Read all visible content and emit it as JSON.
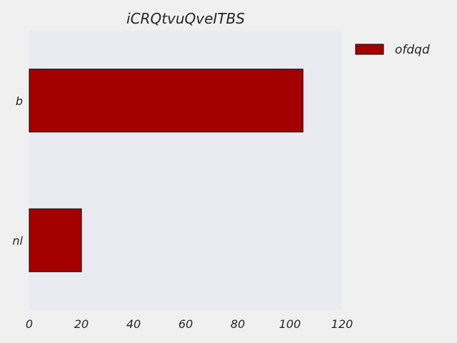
{
  "chart_data": {
    "type": "bar",
    "orientation": "horizontal",
    "title": "iCRQtvuQveITBS",
    "xlabel": "",
    "ylabel": "",
    "categories": [
      "b",
      "nl"
    ],
    "series": [
      {
        "name": "ofdqd",
        "values": [
          105,
          20
        ],
        "color": "#a50000"
      }
    ],
    "xlim": [
      0,
      120
    ],
    "xticks": [
      0,
      20,
      40,
      60,
      80,
      100,
      120
    ],
    "grid": false,
    "legend": "top-right",
    "plot_background": "#eaeaf2",
    "figure_background": "#f0f0f0"
  }
}
